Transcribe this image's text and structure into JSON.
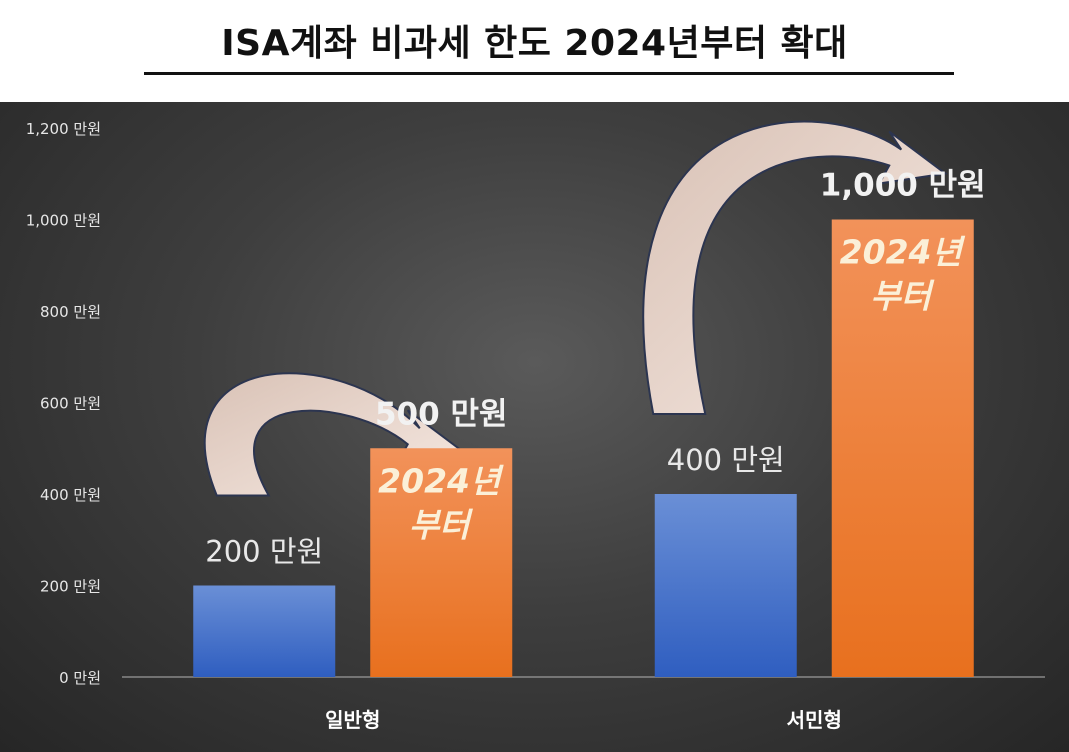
{
  "title": "ISA계좌 비과세 한도 2024년부터 확대",
  "chart_data": {
    "type": "bar",
    "categories": [
      "일반형",
      "서민형"
    ],
    "series": [
      {
        "values": [
          200,
          400
        ],
        "color": "#4472c4"
      },
      {
        "values": [
          500,
          1000
        ],
        "color": "#ed7d31"
      }
    ],
    "value_labels": [
      [
        "200 만원",
        "400 만원"
      ],
      [
        "500 만원",
        "1,000 만원"
      ]
    ],
    "bar_annotation": "2024년\n부터",
    "y_ticks": [
      0,
      200,
      400,
      600,
      800,
      1000,
      1200
    ],
    "y_tick_labels": [
      "0 만원",
      "200 만원",
      "400 만원",
      "600 만원",
      "800 만원",
      "1,000 만원",
      "1,200 만원"
    ],
    "ylim": [
      0,
      1200
    ],
    "grid": false,
    "legend": "none"
  }
}
